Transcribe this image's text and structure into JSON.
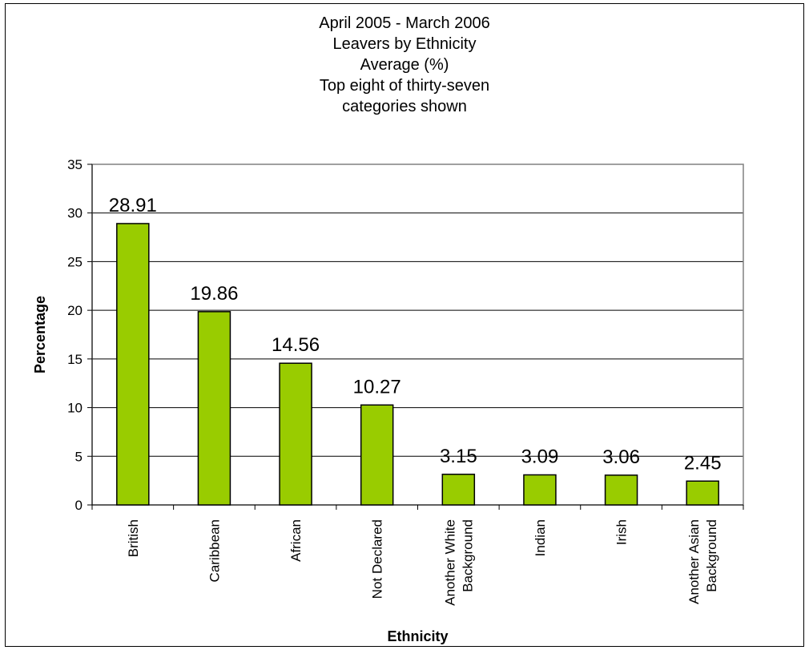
{
  "chart_data": {
    "type": "bar",
    "title_lines": [
      "April 2005 - March 2006",
      "Leavers by Ethnicity",
      "Average (%)",
      "Top eight of thirty-seven",
      "categories shown"
    ],
    "xlabel": "Ethnicity",
    "ylabel": "Percentage",
    "ylim": [
      0,
      35
    ],
    "yticks": [
      0,
      5,
      10,
      15,
      20,
      25,
      30,
      35
    ],
    "grid": true,
    "bar_color": "#99cc00",
    "categories": [
      [
        "British"
      ],
      [
        "Caribbean"
      ],
      [
        "African"
      ],
      [
        "Not Declared"
      ],
      [
        "Another White",
        "Background"
      ],
      [
        "Indian"
      ],
      [
        "Irish"
      ],
      [
        "Another Asian",
        "Background"
      ]
    ],
    "values": [
      28.91,
      19.86,
      14.56,
      10.27,
      3.15,
      3.09,
      3.06,
      2.45
    ],
    "value_labels": [
      "28.91",
      "19.86",
      "14.56",
      "10.27",
      "3.15",
      "3.09",
      "3.06",
      "2.45"
    ]
  }
}
